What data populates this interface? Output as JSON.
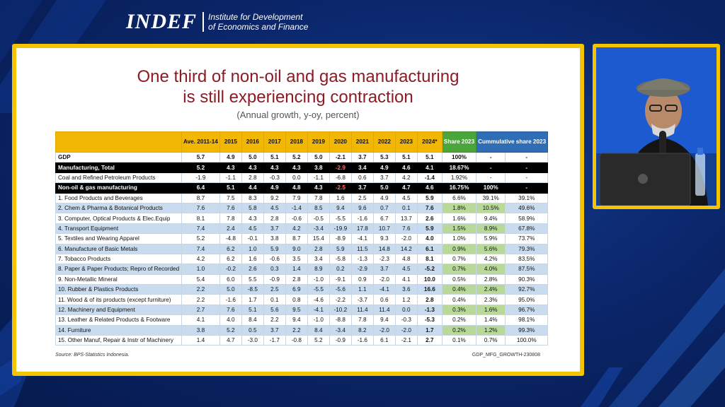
{
  "header": {
    "brand": "INDEF",
    "tagline_1": "Institute for Development",
    "tagline_2": "of Economics and Finance"
  },
  "slide": {
    "title_1": "One third of non-oil and gas manufacturing",
    "title_2": "is still experiencing contraction",
    "subtitle": "(Annual growth, y-oy, percent)",
    "source": "Source: BPS-Statistics Indonesia.",
    "code": "GDP_MFG_GROWTH-230808",
    "table": {
      "headers": [
        "Ave. 2011-14",
        "2015",
        "2016",
        "2017",
        "2018",
        "2019",
        "2020",
        "2021",
        "2022",
        "2023",
        "2024*",
        "Share 2023",
        "Cummulative share 2023"
      ],
      "rows": [
        {
          "label": "GDP",
          "style": "bold",
          "values": [
            "5.7",
            "4.9",
            "5.0",
            "5.1",
            "5.2",
            "5.0",
            "-2.1",
            "3.7",
            "5.3",
            "5.1",
            "5.1",
            "100%",
            "-",
            "-"
          ]
        },
        {
          "label": "Manufacturing, Total",
          "style": "dark",
          "values": [
            "5.2",
            "4.3",
            "4.3",
            "4.3",
            "4.3",
            "3.8",
            "-2.9",
            "3.4",
            "4.9",
            "4.6",
            "4.1",
            "18.67%",
            "-",
            "-"
          ]
        },
        {
          "label": "Coal and Refined Petroleum Products",
          "style": "",
          "values": [
            "-1.9",
            "-1.1",
            "2.8",
            "-0.3",
            "0.0",
            "-1.1",
            "-6.8",
            "0.6",
            "3.7",
            "4.2",
            "-1.4",
            "1.92%",
            "-",
            "-"
          ]
        },
        {
          "label": "Non-oil & gas manufacturing",
          "style": "dark",
          "values": [
            "6.4",
            "5.1",
            "4.4",
            "4.9",
            "4.8",
            "4.3",
            "-2.5",
            "3.7",
            "5.0",
            "4.7",
            "4.6",
            "16.75%",
            "100%",
            "-"
          ]
        },
        {
          "label": "1. Food Products and Beverages",
          "style": "",
          "values": [
            "8.7",
            "7.5",
            "8.3",
            "9.2",
            "7.9",
            "7.8",
            "1.6",
            "2.5",
            "4.9",
            "4.5",
            "5.9",
            "6.6%",
            "39.1%",
            "39.1%"
          ]
        },
        {
          "label": "2. Chem & Pharma & Botanical Products",
          "style": "hl",
          "values": [
            "7.6",
            "7.6",
            "5.8",
            "4.5",
            "-1.4",
            "8.5",
            "9.4",
            "9.6",
            "0.7",
            "0.1",
            "7.6",
            "1.8%",
            "10.5%",
            "49.6%"
          ]
        },
        {
          "label": "3. Computer, Optical Products & Elec.Equip",
          "style": "",
          "values": [
            "8.1",
            "7.8",
            "4.3",
            "2.8",
            "-0.6",
            "-0.5",
            "-5.5",
            "-1.6",
            "6.7",
            "13.7",
            "2.6",
            "1.6%",
            "9.4%",
            "58.9%"
          ]
        },
        {
          "label": "4. Transport Equipment",
          "style": "hl",
          "values": [
            "7.4",
            "2.4",
            "4.5",
            "3.7",
            "4.2",
            "-3.4",
            "-19.9",
            "17.8",
            "10.7",
            "7.6",
            "5.9",
            "1.5%",
            "8.9%",
            "67.8%"
          ]
        },
        {
          "label": "5. Textiles and Wearing Apparel",
          "style": "",
          "values": [
            "5.2",
            "-4.8",
            "-0.1",
            "3.8",
            "8.7",
            "15.4",
            "-8.9",
            "-4.1",
            "9.3",
            "-2.0",
            "4.0",
            "1.0%",
            "5.9%",
            "73.7%"
          ]
        },
        {
          "label": "6. Manufacture of Basic Metals",
          "style": "hl",
          "values": [
            "7.4",
            "6.2",
            "1.0",
            "5.9",
            "9.0",
            "2.8",
            "5.9",
            "11.5",
            "14.8",
            "14.2",
            "6.1",
            "0.9%",
            "5.6%",
            "79.3%"
          ]
        },
        {
          "label": "7. Tobacco Products",
          "style": "",
          "values": [
            "4.2",
            "6.2",
            "1.6",
            "-0.6",
            "3.5",
            "3.4",
            "-5.8",
            "-1.3",
            "-2.3",
            "4.8",
            "8.1",
            "0.7%",
            "4.2%",
            "83.5%"
          ]
        },
        {
          "label": "8. Paper & Paper Products; Repro of Recorded",
          "style": "hl",
          "values": [
            "1.0",
            "-0.2",
            "2.6",
            "0.3",
            "1.4",
            "8.9",
            "0.2",
            "-2.9",
            "3.7",
            "4.5",
            "-5.2",
            "0.7%",
            "4.0%",
            "87.5%"
          ]
        },
        {
          "label": "9. Non-Metallic Mineral",
          "style": "",
          "values": [
            "5.4",
            "6.0",
            "5.5",
            "-0.9",
            "2.8",
            "-1.0",
            "-9.1",
            "0.9",
            "-2.0",
            "4.1",
            "10.0",
            "0.5%",
            "2.8%",
            "90.3%"
          ]
        },
        {
          "label": "10. Rubber & Plastics Products",
          "style": "hl",
          "values": [
            "2.2",
            "5.0",
            "-8.5",
            "2.5",
            "6.9",
            "-5.5",
            "-5.6",
            "1.1",
            "-4.1",
            "3.6",
            "16.6",
            "0.4%",
            "2.4%",
            "92.7%"
          ]
        },
        {
          "label": "11. Wood & of its products (except furniture)",
          "style": "",
          "values": [
            "2.2",
            "-1.6",
            "1.7",
            "0.1",
            "0.8",
            "-4.6",
            "-2.2",
            "-3.7",
            "0.6",
            "1.2",
            "2.8",
            "0.4%",
            "2.3%",
            "95.0%"
          ]
        },
        {
          "label": "12. Machinery and Equipment",
          "style": "hl",
          "values": [
            "2.7",
            "7.6",
            "5.1",
            "5.6",
            "9.5",
            "-4.1",
            "-10.2",
            "11.4",
            "11.4",
            "0.0",
            "-1.3",
            "0.3%",
            "1.6%",
            "96.7%"
          ]
        },
        {
          "label": "13. Leather & Related Products & Footware",
          "style": "",
          "values": [
            "4.1",
            "4.0",
            "8.4",
            "2.2",
            "9.4",
            "-1.0",
            "-8.8",
            "7.8",
            "9.4",
            "-0.3",
            "-5.3",
            "0.2%",
            "1.4%",
            "98.1%"
          ]
        },
        {
          "label": "14. Furniture",
          "style": "hl",
          "values": [
            "3.8",
            "5.2",
            "0.5",
            "3.7",
            "2.2",
            "8.4",
            "-3.4",
            "8.2",
            "-2.0",
            "-2.0",
            "1.7",
            "0.2%",
            "1.2%",
            "99.3%"
          ]
        },
        {
          "label": "15. Other Manuf, Repair & Instr of Machinery",
          "style": "",
          "values": [
            "1.4",
            "4.7",
            "-3.0",
            "-1.7",
            "-0.8",
            "5.2",
            "-0.9",
            "-1.6",
            "6.1",
            "-2.1",
            "2.7",
            "0.1%",
            "0.7%",
            "100.0%"
          ]
        }
      ]
    }
  },
  "colors": {
    "background": "#0a2466",
    "frame": "#f5c400",
    "title": "#8b1c24",
    "header_yellow": "#f2b705",
    "share_green": "#4aa63a",
    "cum_blue": "#2f6db5",
    "row_highlight": "#c9dcef",
    "negative": "#c0203a"
  }
}
